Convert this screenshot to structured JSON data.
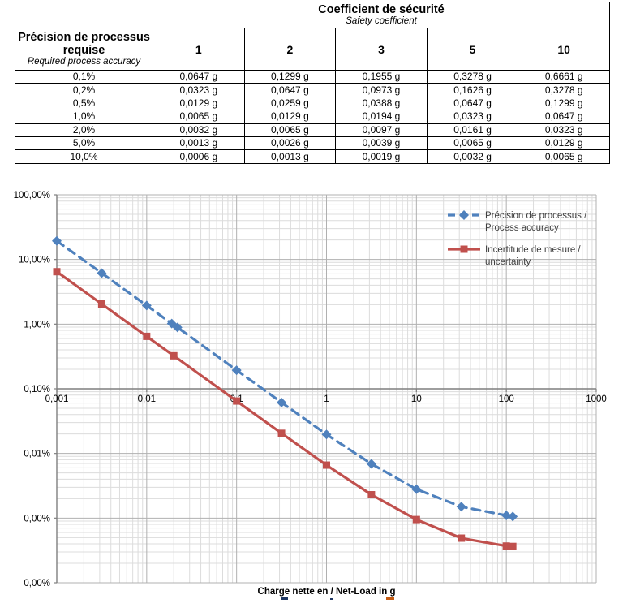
{
  "table": {
    "col_header_title": "Coefficient de sécurité",
    "col_header_subtitle": "Safety coefficient",
    "row_header_title": "Précision de processus requise",
    "row_header_subtitle": "Required process accuracy",
    "coefficients": [
      "1",
      "2",
      "3",
      "5",
      "10"
    ],
    "rows": [
      {
        "accuracy": "0,1%",
        "values": [
          "0,0647 g",
          "0,1299 g",
          "0,1955 g",
          "0,3278 g",
          "0,6661 g"
        ]
      },
      {
        "accuracy": "0,2%",
        "values": [
          "0,0323 g",
          "0,0647 g",
          "0,0973 g",
          "0,1626 g",
          "0,3278 g"
        ]
      },
      {
        "accuracy": "0,5%",
        "values": [
          "0,0129 g",
          "0,0259 g",
          "0,0388 g",
          "0,0647 g",
          "0,1299 g"
        ]
      },
      {
        "accuracy": "1,0%",
        "values": [
          "0,0065 g",
          "0,0129 g",
          "0,0194 g",
          "0,0323 g",
          "0,0647 g"
        ]
      },
      {
        "accuracy": "2,0%",
        "values": [
          "0,0032 g",
          "0,0065 g",
          "0,0097 g",
          "0,0161 g",
          "0,0323 g"
        ]
      },
      {
        "accuracy": "5,0%",
        "values": [
          "0,0013 g",
          "0,0026 g",
          "0,0039 g",
          "0,0065 g",
          "0,0129 g"
        ]
      },
      {
        "accuracy": "10,0%",
        "values": [
          "0,0006 g",
          "0,0013 g",
          "0,0019 g",
          "0,0032 g",
          "0,0065 g"
        ]
      }
    ]
  },
  "chart_data": {
    "type": "line",
    "x_scale": "log",
    "y_scale": "log",
    "xlabel": "Charge nette en / Net-Load in g",
    "ylabel": "",
    "xlim": [
      0.001,
      1000
    ],
    "ylim_percent": [
      0.0001,
      100
    ],
    "grid": "major+minor",
    "legend_position": "upper-right-inside",
    "x_ticks": [
      {
        "label": "0,001",
        "value": 0.001
      },
      {
        "label": "0,01",
        "value": 0.01
      },
      {
        "label": "0,1",
        "value": 0.1
      },
      {
        "label": "1",
        "value": 1
      },
      {
        "label": "10",
        "value": 10
      },
      {
        "label": "100",
        "value": 100
      },
      {
        "label": "1000",
        "value": 1000
      }
    ],
    "y_ticks": [
      {
        "label": "100,00%",
        "value": 100
      },
      {
        "label": "10,00%",
        "value": 10
      },
      {
        "label": "1,00%",
        "value": 1
      },
      {
        "label": "0,10%",
        "value": 0.1
      },
      {
        "label": "0,01%",
        "value": 0.01
      },
      {
        "label": "0,00%",
        "value": 0.001
      },
      {
        "label": "0,00%",
        "value": 0.0001
      }
    ],
    "axis_crosses_at_percent": 0.1,
    "series": [
      {
        "name": "Précision de processus / Process accuracy",
        "legend_line1": "Précision de processus /",
        "legend_line2": "Process accuracy",
        "color": "#4f81bd",
        "line_style": "dashed",
        "marker": "diamond",
        "x": [
          0.001,
          0.00316,
          0.01,
          0.019,
          0.022,
          0.1,
          0.316,
          1,
          3.16,
          10,
          31.6,
          100,
          118
        ],
        "y_percent": [
          19.4,
          6.15,
          1.94,
          1.02,
          0.89,
          0.194,
          0.0615,
          0.0197,
          0.0069,
          0.0028,
          0.0015,
          0.0011,
          0.00106
        ]
      },
      {
        "name": "Incertitude de mesure / uncertainty",
        "legend_line1": "Incertitude de mesure /",
        "legend_line2": "uncertainty",
        "color": "#c0504d",
        "line_style": "solid",
        "marker": "square",
        "x": [
          0.001,
          0.00316,
          0.01,
          0.02,
          0.1,
          0.316,
          1,
          3.16,
          10,
          31.6,
          100,
          118
        ],
        "y_percent": [
          6.47,
          2.05,
          0.647,
          0.324,
          0.0647,
          0.0205,
          0.0066,
          0.0023,
          0.00095,
          0.00049,
          0.00037,
          0.000365
        ]
      }
    ]
  }
}
